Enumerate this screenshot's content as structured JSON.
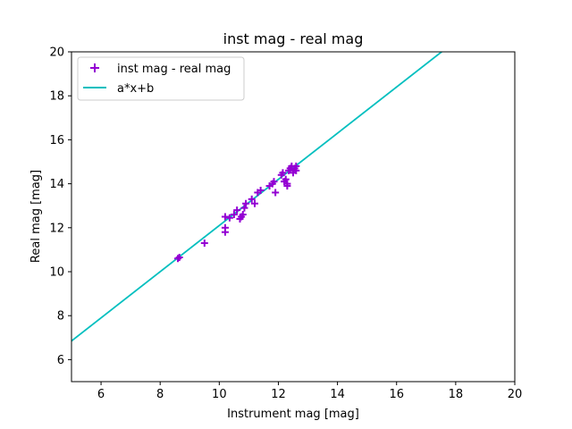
{
  "chart_data": {
    "type": "scatter",
    "title": "inst mag - real mag",
    "xlabel": "Instrument mag [mag]",
    "ylabel": "Real mag [mag]",
    "xlim": [
      5,
      20
    ],
    "ylim": [
      5,
      20
    ],
    "x_ticks": [
      6,
      8,
      10,
      12,
      14,
      16,
      18,
      20
    ],
    "y_ticks": [
      6,
      8,
      10,
      12,
      14,
      16,
      18,
      20
    ],
    "grid": false,
    "legend_position": "top-left",
    "scatter": {
      "name": "inst mag - real mag",
      "marker": "+",
      "color": "#9400d3",
      "points": [
        [
          8.6,
          10.6
        ],
        [
          8.65,
          10.65
        ],
        [
          9.5,
          11.3
        ],
        [
          10.2,
          11.8
        ],
        [
          10.2,
          12.0
        ],
        [
          10.2,
          12.5
        ],
        [
          10.35,
          12.45
        ],
        [
          10.5,
          12.6
        ],
        [
          10.6,
          12.8
        ],
        [
          10.7,
          12.4
        ],
        [
          10.75,
          12.5
        ],
        [
          10.8,
          12.6
        ],
        [
          10.85,
          12.9
        ],
        [
          10.9,
          13.1
        ],
        [
          11.1,
          13.3
        ],
        [
          11.2,
          13.1
        ],
        [
          11.3,
          13.6
        ],
        [
          11.4,
          13.7
        ],
        [
          11.7,
          13.9
        ],
        [
          11.8,
          14.0
        ],
        [
          11.85,
          14.1
        ],
        [
          11.9,
          13.6
        ],
        [
          12.1,
          14.4
        ],
        [
          12.15,
          14.5
        ],
        [
          12.2,
          14.1
        ],
        [
          12.25,
          14.2
        ],
        [
          12.3,
          14.0
        ],
        [
          12.3,
          13.9
        ],
        [
          12.35,
          14.6
        ],
        [
          12.4,
          14.7
        ],
        [
          12.45,
          14.8
        ],
        [
          12.5,
          14.5
        ],
        [
          12.55,
          14.7
        ],
        [
          12.6,
          14.8
        ],
        [
          12.6,
          14.6
        ]
      ]
    },
    "fit_line": {
      "name": "a*x+b",
      "color": "#00bfbf",
      "slope": 1.05,
      "intercept": 1.6
    }
  }
}
